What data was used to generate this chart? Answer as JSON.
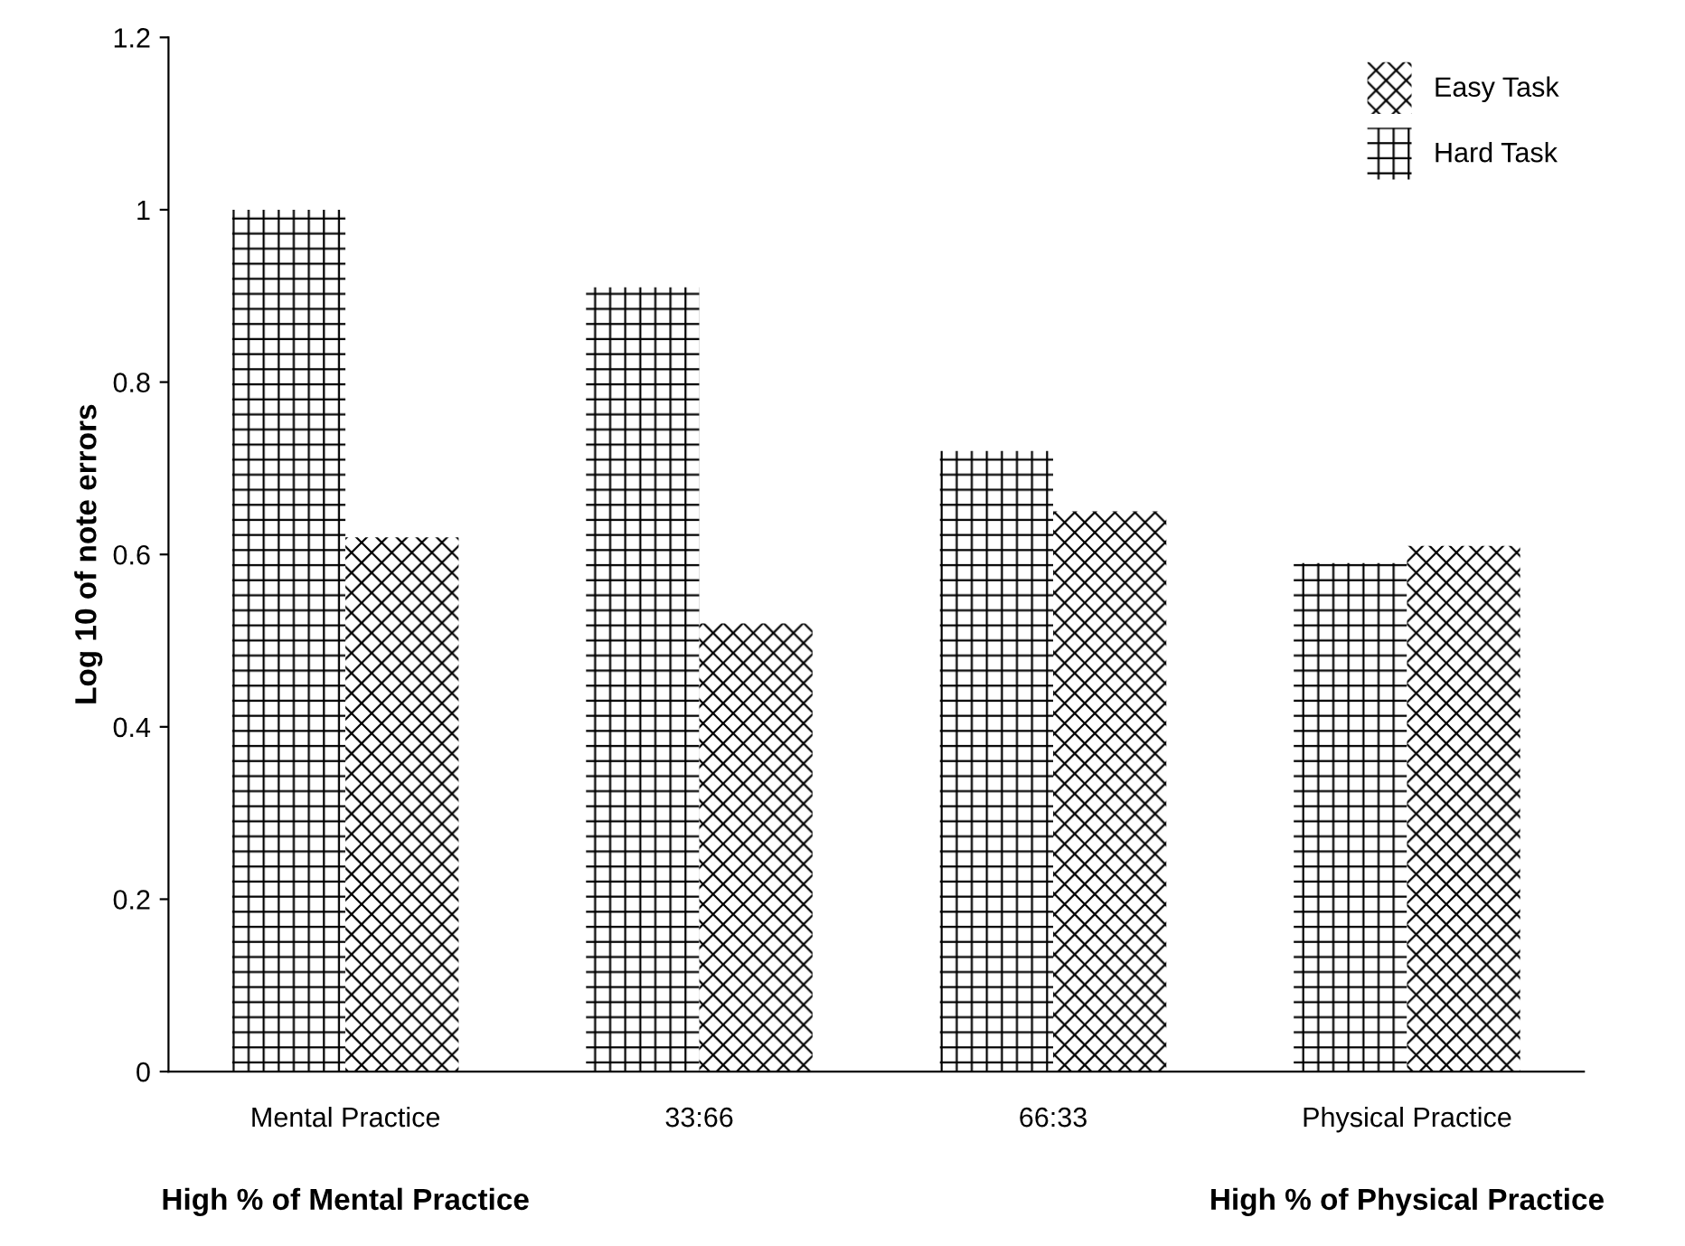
{
  "chart_data": {
    "type": "bar",
    "ylabel": "Log 10 of note errors",
    "categories": [
      "Mental Practice",
      "33:66",
      "66:33",
      "Physical Practice"
    ],
    "series": [
      {
        "name": "Hard Task",
        "color": "#ffffff",
        "values": [
          1.0,
          0.91,
          0.72,
          0.59
        ]
      },
      {
        "name": "Easy Task",
        "color": "#ffffff",
        "values": [
          0.62,
          0.52,
          0.65,
          0.61
        ]
      }
    ],
    "ylim": [
      0,
      1.2
    ],
    "yticks": [
      0,
      0.2,
      0.4,
      0.6,
      0.8,
      1,
      1.2
    ],
    "grid": false,
    "legend": "top right",
    "annotations": [
      "High % of Mental Practice",
      "High % of Physical Practice"
    ]
  }
}
